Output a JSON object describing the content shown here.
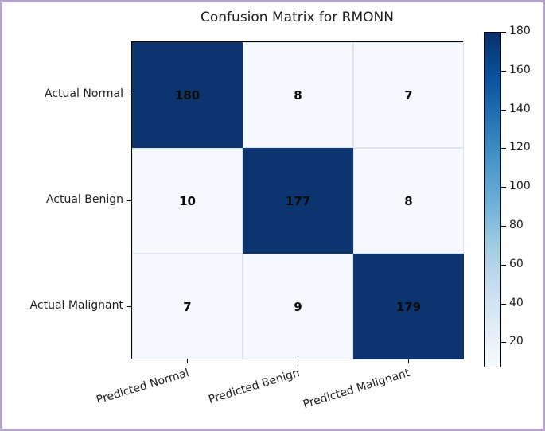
{
  "frame": {
    "border_color": "#b6a3c9",
    "background": "#ffffff"
  },
  "chart_data": {
    "type": "heatmap",
    "title": "Confusion Matrix for RMONN",
    "x_categories": [
      "Predicted Normal",
      "Predicted Benign",
      "Predicted Malignant"
    ],
    "y_categories": [
      "Actual Normal",
      "Actual Benign",
      "Actual Malignant"
    ],
    "matrix": [
      [
        180,
        8,
        7
      ],
      [
        10,
        177,
        8
      ],
      [
        7,
        9,
        179
      ]
    ],
    "colormap": "Blues",
    "vmin": 7,
    "vmax": 180,
    "colorbar_ticks": [
      20,
      40,
      60,
      80,
      100,
      120,
      140,
      160,
      180
    ],
    "legend_position": "right-colorbar",
    "grid": false,
    "value_text_color": "#0a0a0a",
    "colors": {
      "dark_cell": "#0c3570",
      "light_cell": "#f5f9fd",
      "cmap_min": "#f7fbff",
      "cmap_max": "#08306b"
    }
  }
}
